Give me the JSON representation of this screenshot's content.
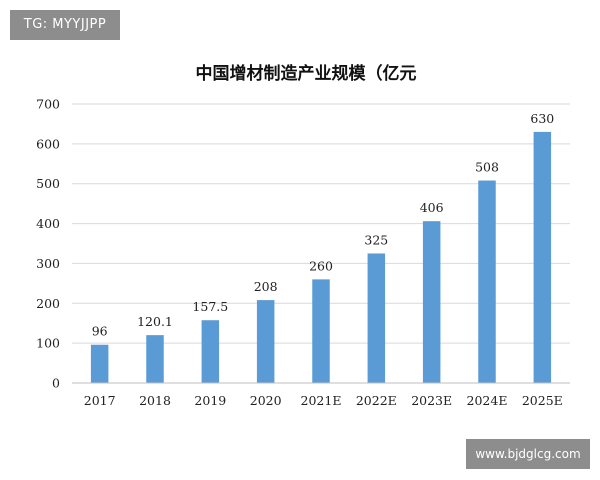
{
  "watermark_top": "TG: MYYJJPP",
  "watermark_bottom": "www.bjdglcg.com",
  "colors": {
    "bar": "#5b9bd5",
    "grid": "#d9d9d9",
    "axis": "#bfbfbf"
  },
  "chart_data": {
    "type": "bar",
    "title": "中国增材制造产业规模（亿元",
    "xlabel": "",
    "ylabel": "",
    "categories": [
      "2017",
      "2018",
      "2019",
      "2020",
      "2021E",
      "2022E",
      "2023E",
      "2024E",
      "2025E"
    ],
    "values": [
      96,
      120.1,
      157.5,
      208,
      260,
      325,
      406,
      508,
      630
    ],
    "data_labels": [
      "96",
      "120.1",
      "157.5",
      "208",
      "260",
      "325",
      "406",
      "508",
      "630"
    ],
    "ylim": [
      0,
      700
    ],
    "yticks": [
      "0",
      "100",
      "200",
      "300",
      "400",
      "500",
      "600",
      "700"
    ],
    "grid": true,
    "legend": "none"
  }
}
